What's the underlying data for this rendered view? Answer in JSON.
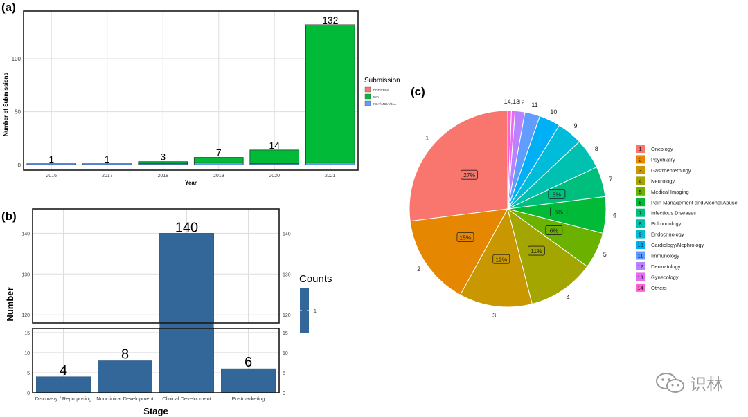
{
  "panel_labels": {
    "a": "(a)",
    "b": "(b)",
    "c": "(c)"
  },
  "colors": {
    "DDT/CPIM": "#f8766d",
    "IND": "#00ba38",
    "NDA/ANDA/BLA": "#619cff",
    "bar_b": "#336699",
    "frame": "#1a1a1a",
    "grid": "#dddddd"
  },
  "watermark": {
    "text": "识林",
    "icon": "wechat-icon"
  },
  "chart_data": [
    {
      "id": "a",
      "type": "bar",
      "stacked": true,
      "categories": [
        "2016",
        "2017",
        "2018",
        "2019",
        "2020",
        "2021"
      ],
      "series": [
        {
          "name": "DDT/CPIM",
          "values": [
            0,
            0,
            0,
            0,
            0,
            1
          ]
        },
        {
          "name": "IND",
          "values": [
            0,
            0,
            2,
            5,
            13,
            129
          ]
        },
        {
          "name": "NDA/ANDA/BLA",
          "values": [
            1,
            1,
            1,
            2,
            1,
            2
          ]
        }
      ],
      "totals": [
        1,
        1,
        3,
        7,
        14,
        132
      ],
      "xlabel": "Year",
      "ylabel": "Number of Submissions",
      "yticks": [
        0,
        50,
        100
      ],
      "ylim": [
        -5,
        145
      ],
      "legend_title": "Submission",
      "legend_position": "right",
      "grid": true
    },
    {
      "id": "b",
      "type": "bar",
      "broken_axis": true,
      "categories": [
        "Discovery / Repurposing",
        "Nonclinical Development",
        "Clinical Development",
        "Postmarketing"
      ],
      "values": [
        4,
        8,
        140,
        6
      ],
      "xlabel": "Stage",
      "ylabel": "Number",
      "upper_ylim": [
        118,
        146
      ],
      "upper_yticks": [
        120,
        130,
        140
      ],
      "lower_ylim": [
        0,
        16
      ],
      "lower_yticks": [
        0,
        5,
        10,
        15
      ],
      "legend_title": "Counts",
      "legend_value": "1",
      "legend_position": "right",
      "grid": true
    },
    {
      "id": "c",
      "type": "pie",
      "categories": [
        "Oncology",
        "Psychiatry",
        "Gastroenterology",
        "Neurology",
        "Medical Imaging",
        "Pain Management and Alcohol Abuse",
        "Infectious Diseases",
        "Pulmonology",
        "Endocrinology",
        "Cardiology/Nephrology",
        "Immunology",
        "Dermatology",
        "Gynecology",
        "Others"
      ],
      "codes": [
        "1",
        "2",
        "3",
        "4",
        "5",
        "6",
        "7",
        "8",
        "9",
        "10",
        "11",
        "12",
        "13",
        "14"
      ],
      "values": [
        27,
        15,
        12,
        11,
        6,
        6,
        5,
        5,
        4.2,
        3.5,
        2.5,
        1.6,
        0.6,
        0.6
      ],
      "percent_labels": [
        "27%",
        "15%",
        "12%",
        "11%",
        "6%",
        "6%",
        "5%",
        "",
        "",
        "",
        "",
        "",
        "",
        ""
      ],
      "outer_labels": [
        "1",
        "2",
        "3",
        "4",
        "5",
        "6",
        "7",
        "8",
        "9",
        "10",
        "11",
        "12",
        "",
        "14,13"
      ],
      "colors": [
        "#f8766d",
        "#e58700",
        "#c99800",
        "#a3a500",
        "#6bb100",
        "#00ba38",
        "#00bf7d",
        "#00c0af",
        "#00bcd8",
        "#00b0f6",
        "#619cff",
        "#b983ff",
        "#e76bf3",
        "#fd61d1"
      ],
      "legend_position": "right"
    }
  ]
}
